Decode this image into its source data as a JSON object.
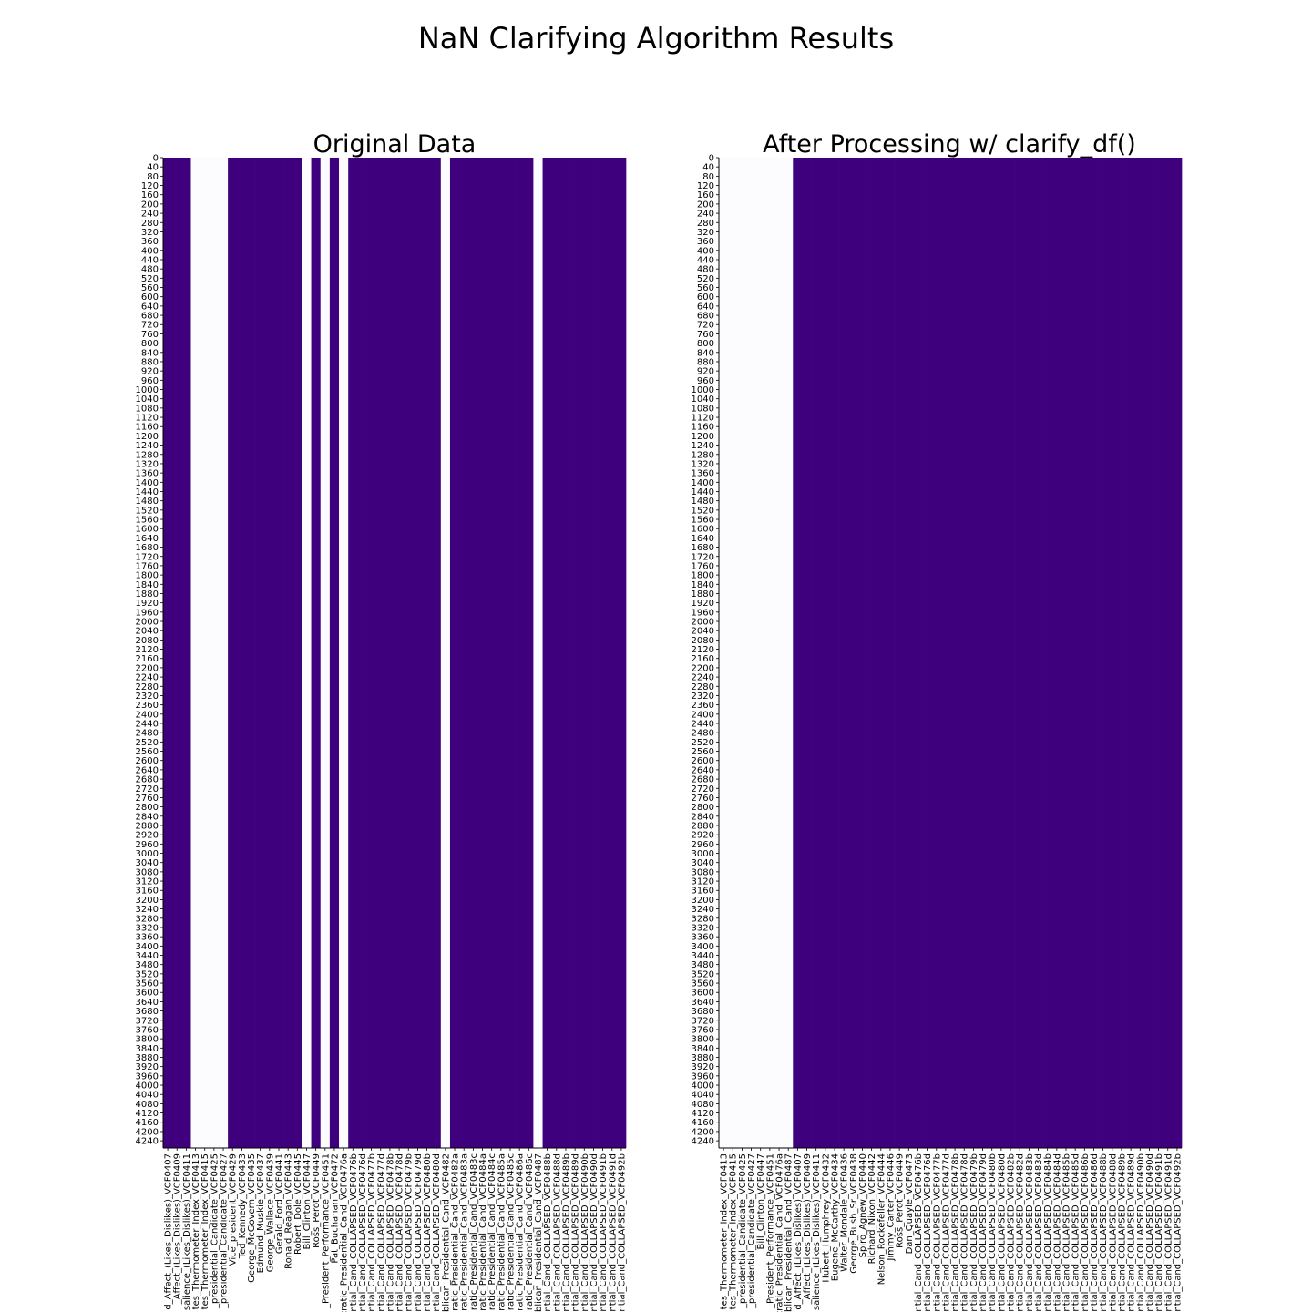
{
  "figure": {
    "title": "NaN Clarifying Algorithm Results"
  },
  "colors": {
    "present": "#3f007d",
    "missing": "#fcfbfd",
    "axis": "#000000"
  },
  "chart_data": [
    {
      "type": "heatmap",
      "title": "Original Data",
      "rows": 4271,
      "yticks": [
        0,
        40,
        80,
        120,
        160,
        200,
        240,
        280,
        320,
        360,
        400,
        440,
        480,
        520,
        560,
        600,
        640,
        680,
        720,
        760,
        800,
        840,
        880,
        920,
        960,
        1000,
        1040,
        1080,
        1120,
        1160,
        1200,
        1240,
        1280,
        1320,
        1360,
        1400,
        1440,
        1480,
        1520,
        1560,
        1600,
        1640,
        1680,
        1720,
        1760,
        1800,
        1840,
        1880,
        1920,
        1960,
        2000,
        2040,
        2080,
        2120,
        2160,
        2200,
        2240,
        2280,
        2320,
        2360,
        2400,
        2440,
        2480,
        2520,
        2560,
        2600,
        2640,
        2680,
        2720,
        2760,
        2800,
        2840,
        2880,
        2920,
        2960,
        3000,
        3040,
        3080,
        3120,
        3160,
        3200,
        3240,
        3280,
        3320,
        3360,
        3400,
        3440,
        3480,
        3520,
        3560,
        3600,
        3640,
        3680,
        3720,
        3760,
        3800,
        3840,
        3880,
        3920,
        3960,
        4000,
        4040,
        4080,
        4120,
        4160,
        4200,
        4240
      ],
      "columns": [
        {
          "label": "d_Affect_(Likes_Dislikes)_VCF0407",
          "missing": false
        },
        {
          "label": "_Affect_(Likes_Dislikes)_VCF0409",
          "missing": false
        },
        {
          "label": "salience_(Likes_Dislikes)_VCF0411",
          "missing": false
        },
        {
          "label": "tes_Thermometer_Index_VCF0413",
          "missing": true
        },
        {
          "label": "tes_Thermometer_Index_VCF0415",
          "missing": true
        },
        {
          "label": "_presidential_Candidate_VCF0425",
          "missing": true
        },
        {
          "label": "_presidential_Candidate_VCF0427",
          "missing": true
        },
        {
          "label": "Vice_president_VCF0429",
          "missing": false
        },
        {
          "label": "Ted_Kennedy_VCF0433",
          "missing": false
        },
        {
          "label": "George_McGovern_VCF0435",
          "missing": false
        },
        {
          "label": "Edmund_Muskie_VCF0437",
          "missing": false
        },
        {
          "label": "George_Wallace_VCF0439",
          "missing": false
        },
        {
          "label": "Gerald_Ford_VCF0441",
          "missing": false
        },
        {
          "label": "Ronald_Reagan_VCF0443",
          "missing": false
        },
        {
          "label": "Robert_Dole_VCF0445",
          "missing": false
        },
        {
          "label": "Bill_Clinton_VCF0447",
          "missing": true
        },
        {
          "label": "Ross_Perot_VCF0449",
          "missing": false
        },
        {
          "label": "_President_Performance_VCF0451",
          "missing": true
        },
        {
          "label": "Pat_Buchanan_VCF0472",
          "missing": false
        },
        {
          "label": "ocratic_Presidential_Cand_VCF0476a",
          "missing": true
        },
        {
          "label": "ntial_Cand_COLLAPSED_VCF0476b",
          "missing": false
        },
        {
          "label": "ntial_Cand_COLLAPSED_VCF0476d",
          "missing": false
        },
        {
          "label": "ntial_Cand_COLLAPSED_VCF0477b",
          "missing": false
        },
        {
          "label": "ntial_Cand_COLLAPSED_VCF0477d",
          "missing": false
        },
        {
          "label": "ntial_Cand_COLLAPSED_VCF0478b",
          "missing": false
        },
        {
          "label": "ntial_Cand_COLLAPSED_VCF0478d",
          "missing": false
        },
        {
          "label": "ntial_Cand_COLLAPSED_VCF0479b",
          "missing": false
        },
        {
          "label": "ntial_Cand_COLLAPSED_VCF0479d",
          "missing": false
        },
        {
          "label": "ntial_Cand_COLLAPSED_VCF0480b",
          "missing": false
        },
        {
          "label": "ntial_Cand_COLLAPSED_VCF0480d",
          "missing": false
        },
        {
          "label": "ublican_Presidential_Cand_VCF0482",
          "missing": true
        },
        {
          "label": "ratic_Presidential_Cand_VCF0482a",
          "missing": false
        },
        {
          "label": "ratic_Presidential_Cand_VCF0483a",
          "missing": false
        },
        {
          "label": "ratic_Presidential_Cand_VCF0483c",
          "missing": false
        },
        {
          "label": "ratic_Presidential_Cand_VCF0484a",
          "missing": false
        },
        {
          "label": "ratic_Presidential_Cand_VCF0484c",
          "missing": false
        },
        {
          "label": "ratic_Presidential_Cand_VCF0485a",
          "missing": false
        },
        {
          "label": "ratic_Presidential_Cand_VCF0485c",
          "missing": false
        },
        {
          "label": "ratic_Presidential_Cand_VCF0486a",
          "missing": false
        },
        {
          "label": "ratic_Presidential_Cand_VCF0486c",
          "missing": false
        },
        {
          "label": "ublican_Presidential_Cand_VCF0487",
          "missing": true
        },
        {
          "label": "ntial_Cand_COLLAPSED_VCF0488b",
          "missing": false
        },
        {
          "label": "ntial_Cand_COLLAPSED_VCF0488d",
          "missing": false
        },
        {
          "label": "ntial_Cand_COLLAPSED_VCF0489b",
          "missing": false
        },
        {
          "label": "ntial_Cand_COLLAPSED_VCF0489d",
          "missing": false
        },
        {
          "label": "ntial_Cand_COLLAPSED_VCF0490b",
          "missing": false
        },
        {
          "label": "ntial_Cand_COLLAPSED_VCF0490d",
          "missing": false
        },
        {
          "label": "ntial_Cand_COLLAPSED_VCF0491b",
          "missing": false
        },
        {
          "label": "ntial_Cand_COLLAPSED_VCF0491d",
          "missing": false
        },
        {
          "label": "ntial_Cand_COLLAPSED_VCF0492b",
          "missing": false
        }
      ]
    },
    {
      "type": "heatmap",
      "title": "After Processing w/ clarify_df()",
      "rows": 4271,
      "yticks": [
        0,
        40,
        80,
        120,
        160,
        200,
        240,
        280,
        320,
        360,
        400,
        440,
        480,
        520,
        560,
        600,
        640,
        680,
        720,
        760,
        800,
        840,
        880,
        920,
        960,
        1000,
        1040,
        1080,
        1120,
        1160,
        1200,
        1240,
        1280,
        1320,
        1360,
        1400,
        1440,
        1480,
        1520,
        1560,
        1600,
        1640,
        1680,
        1720,
        1760,
        1800,
        1840,
        1880,
        1920,
        1960,
        2000,
        2040,
        2080,
        2120,
        2160,
        2200,
        2240,
        2280,
        2320,
        2360,
        2400,
        2440,
        2480,
        2520,
        2560,
        2600,
        2640,
        2680,
        2720,
        2760,
        2800,
        2840,
        2880,
        2920,
        2960,
        3000,
        3040,
        3080,
        3120,
        3160,
        3200,
        3240,
        3280,
        3320,
        3360,
        3400,
        3440,
        3480,
        3520,
        3560,
        3600,
        3640,
        3680,
        3720,
        3760,
        3800,
        3840,
        3880,
        3920,
        3960,
        4000,
        4040,
        4080,
        4120,
        4160,
        4200,
        4240
      ],
      "columns": [
        {
          "label": "tes_Thermometer_Index_VCF0413",
          "missing": true
        },
        {
          "label": "tes_Thermometer_Index_VCF0415",
          "missing": true
        },
        {
          "label": "_presidential_Candidate_VCF0425",
          "missing": true
        },
        {
          "label": "_presidential_Candidate_VCF0427",
          "missing": true
        },
        {
          "label": "Bill_Clinton_VCF0447",
          "missing": true
        },
        {
          "label": "_President_Performance_VCF0451",
          "missing": true
        },
        {
          "label": "ocratic_Presidential_Cand_VCF0476a",
          "missing": true
        },
        {
          "label": "ublican_Presidential_Cand_VCF0487",
          "missing": true
        },
        {
          "label": "d_Affect_(Likes_Dislikes)_VCF0407",
          "missing": false
        },
        {
          "label": "_Affect_(Likes_Dislikes)_VCF0409",
          "missing": false
        },
        {
          "label": "salience_(Likes_Dislikes)_VCF0411",
          "missing": false
        },
        {
          "label": "Hubert_Humphrey_VCF0432",
          "missing": false
        },
        {
          "label": "Eugene_McCarthy_VCF0434",
          "missing": false
        },
        {
          "label": "Walter_Mondale_VCF0436",
          "missing": false
        },
        {
          "label": "George_Bush_Sr_VCF0438",
          "missing": false
        },
        {
          "label": "Spiro_Agnew_VCF0440",
          "missing": false
        },
        {
          "label": "Richard_Nixon_VCF0442",
          "missing": false
        },
        {
          "label": "Nelson_Rockefeller_VCF0444",
          "missing": false
        },
        {
          "label": "Jimmy_Carter_VCF0446",
          "missing": false
        },
        {
          "label": "Ross_Perot_VCF0449",
          "missing": false
        },
        {
          "label": "Dan_Quayle_VCF0473",
          "missing": false
        },
        {
          "label": "ntial_Cand_COLLAPSED_VCF0476b",
          "missing": false
        },
        {
          "label": "ntial_Cand_COLLAPSED_VCF0476d",
          "missing": false
        },
        {
          "label": "ntial_Cand_COLLAPSED_VCF0477b",
          "missing": false
        },
        {
          "label": "ntial_Cand_COLLAPSED_VCF0477d",
          "missing": false
        },
        {
          "label": "ntial_Cand_COLLAPSED_VCF0478b",
          "missing": false
        },
        {
          "label": "ntial_Cand_COLLAPSED_VCF0478d",
          "missing": false
        },
        {
          "label": "ntial_Cand_COLLAPSED_VCF0479b",
          "missing": false
        },
        {
          "label": "ntial_Cand_COLLAPSED_VCF0479d",
          "missing": false
        },
        {
          "label": "ntial_Cand_COLLAPSED_VCF0480b",
          "missing": false
        },
        {
          "label": "ntial_Cand_COLLAPSED_VCF0480d",
          "missing": false
        },
        {
          "label": "ntial_Cand_COLLAPSED_VCF0482b",
          "missing": false
        },
        {
          "label": "ntial_Cand_COLLAPSED_VCF0482d",
          "missing": false
        },
        {
          "label": "ntial_Cand_COLLAPSED_VCF0483b",
          "missing": false
        },
        {
          "label": "ntial_Cand_COLLAPSED_VCF0483d",
          "missing": false
        },
        {
          "label": "ntial_Cand_COLLAPSED_VCF0484b",
          "missing": false
        },
        {
          "label": "ntial_Cand_COLLAPSED_VCF0484d",
          "missing": false
        },
        {
          "label": "ntial_Cand_COLLAPSED_VCF0485b",
          "missing": false
        },
        {
          "label": "ntial_Cand_COLLAPSED_VCF0485d",
          "missing": false
        },
        {
          "label": "ntial_Cand_COLLAPSED_VCF0486b",
          "missing": false
        },
        {
          "label": "ntial_Cand_COLLAPSED_VCF0486d",
          "missing": false
        },
        {
          "label": "ntial_Cand_COLLAPSED_VCF0488b",
          "missing": false
        },
        {
          "label": "ntial_Cand_COLLAPSED_VCF0488d",
          "missing": false
        },
        {
          "label": "ntial_Cand_COLLAPSED_VCF0489b",
          "missing": false
        },
        {
          "label": "ntial_Cand_COLLAPSED_VCF0489d",
          "missing": false
        },
        {
          "label": "ntial_Cand_COLLAPSED_VCF0490b",
          "missing": false
        },
        {
          "label": "ntial_Cand_COLLAPSED_VCF0490d",
          "missing": false
        },
        {
          "label": "ntial_Cand_COLLAPSED_VCF0491b",
          "missing": false
        },
        {
          "label": "ntial_Cand_COLLAPSED_VCF0491d",
          "missing": false
        },
        {
          "label": "ntial_Cand_COLLAPSED_VCF0492b",
          "missing": false
        }
      ]
    }
  ]
}
